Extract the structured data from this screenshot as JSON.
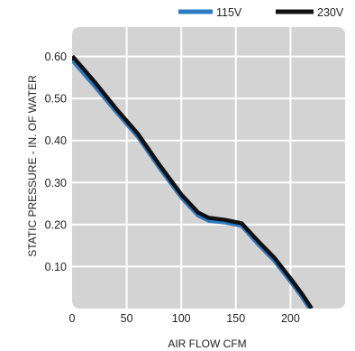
{
  "chart_data": {
    "type": "line",
    "title": "",
    "xlabel": "AIR FLOW CFM",
    "ylabel": "STATIC PRESSURE - IN. OF WATER",
    "xlim": [
      0,
      250
    ],
    "ylim": [
      0,
      0.67
    ],
    "x_ticks": [
      {
        "value": 0,
        "label": "0"
      },
      {
        "value": 50,
        "label": "50"
      },
      {
        "value": 100,
        "label": "100"
      },
      {
        "value": 150,
        "label": "150"
      },
      {
        "value": 200,
        "label": "200"
      }
    ],
    "y_ticks": [
      {
        "value": 0.1,
        "label": "0.10"
      },
      {
        "value": 0.2,
        "label": "0.20"
      },
      {
        "value": 0.3,
        "label": "0.30"
      },
      {
        "value": 0.4,
        "label": "0.40"
      },
      {
        "value": 0.5,
        "label": "0.50"
      },
      {
        "value": 0.6,
        "label": "0.60"
      }
    ],
    "grid": true,
    "legend_position": "top-right",
    "series": [
      {
        "name": "230V",
        "color": "#111111",
        "x": [
          0,
          20,
          40,
          60,
          80,
          100,
          115,
          125,
          140,
          155,
          170,
          185,
          200,
          210,
          219
        ],
        "y": [
          0.6,
          0.54,
          0.475,
          0.415,
          0.34,
          0.27,
          0.228,
          0.215,
          0.21,
          0.202,
          0.16,
          0.12,
          0.07,
          0.035,
          0.0
        ]
      },
      {
        "name": "115V",
        "color": "#2b7bc4",
        "x": [
          0,
          20,
          40,
          60,
          80,
          100,
          115,
          125,
          140,
          155,
          170,
          185,
          200,
          210,
          217
        ],
        "y": [
          0.59,
          0.53,
          0.468,
          0.408,
          0.333,
          0.263,
          0.221,
          0.208,
          0.204,
          0.196,
          0.153,
          0.113,
          0.063,
          0.028,
          0.0
        ]
      }
    ]
  }
}
